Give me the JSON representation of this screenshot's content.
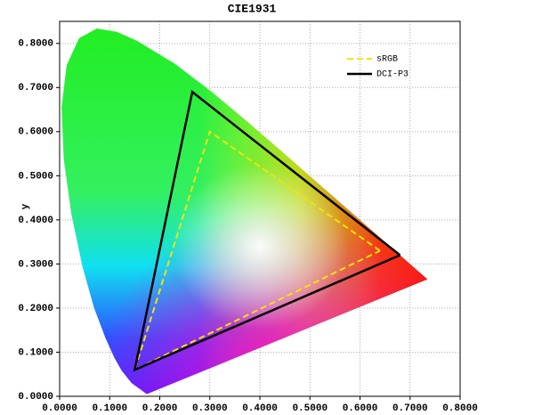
{
  "chart_data": {
    "type": "line",
    "title": "CIE1931",
    "y_label": "y",
    "xlim": [
      0,
      0.8
    ],
    "ylim": [
      0,
      0.85
    ],
    "xticks": [
      {
        "value": 0,
        "label": "0.0000"
      },
      {
        "value": 0.1,
        "label": "0.1000"
      },
      {
        "value": 0.2,
        "label": "0.2000"
      },
      {
        "value": 0.3,
        "label": "0.3000"
      },
      {
        "value": 0.4,
        "label": "0.4000"
      },
      {
        "value": 0.5,
        "label": "0.5000"
      },
      {
        "value": 0.6,
        "label": "0.6000"
      },
      {
        "value": 0.7,
        "label": "0.7000"
      },
      {
        "value": 0.8,
        "label": "0.8000"
      }
    ],
    "yticks": [
      {
        "value": 0,
        "label": "0.0000"
      },
      {
        "value": 0.1,
        "label": "0.1000"
      },
      {
        "value": 0.2,
        "label": "0.2000"
      },
      {
        "value": 0.3,
        "label": "0.3000"
      },
      {
        "value": 0.4,
        "label": "0.4000"
      },
      {
        "value": 0.5,
        "label": "0.5000"
      },
      {
        "value": 0.6,
        "label": "0.6000"
      },
      {
        "value": 0.7,
        "label": "0.7000"
      },
      {
        "value": 0.8,
        "label": "0.8000"
      }
    ],
    "grid": true,
    "legend": "upper right",
    "locus": {
      "x": [
        0.1741,
        0.144,
        0.1241,
        0.1096,
        0.0913,
        0.0687,
        0.0454,
        0.0235,
        0.0082,
        0.0039,
        0.0139,
        0.0389,
        0.0743,
        0.1142,
        0.1547,
        0.2296,
        0.3016,
        0.3731,
        0.4441,
        0.5125,
        0.5752,
        0.627,
        0.6915,
        0.7347
      ],
      "y": [
        0.005,
        0.0297,
        0.0578,
        0.0868,
        0.1327,
        0.2007,
        0.295,
        0.4127,
        0.5384,
        0.6548,
        0.7502,
        0.812,
        0.8338,
        0.8262,
        0.8059,
        0.7543,
        0.6923,
        0.6245,
        0.5547,
        0.4866,
        0.4242,
        0.3725,
        0.3083,
        0.2653
      ]
    },
    "series": [
      {
        "name": "sRGB",
        "color": "#f2e20c",
        "dashed": true,
        "x": [
          0.64,
          0.3,
          0.15,
          0.64
        ],
        "values": [
          0.33,
          0.6,
          0.06,
          0.33
        ]
      },
      {
        "name": "DCI-P3",
        "color": "#000000",
        "dashed": false,
        "x": [
          0.68,
          0.265,
          0.15,
          0.68
        ],
        "values": [
          0.32,
          0.69,
          0.06,
          0.32
        ]
      }
    ]
  }
}
